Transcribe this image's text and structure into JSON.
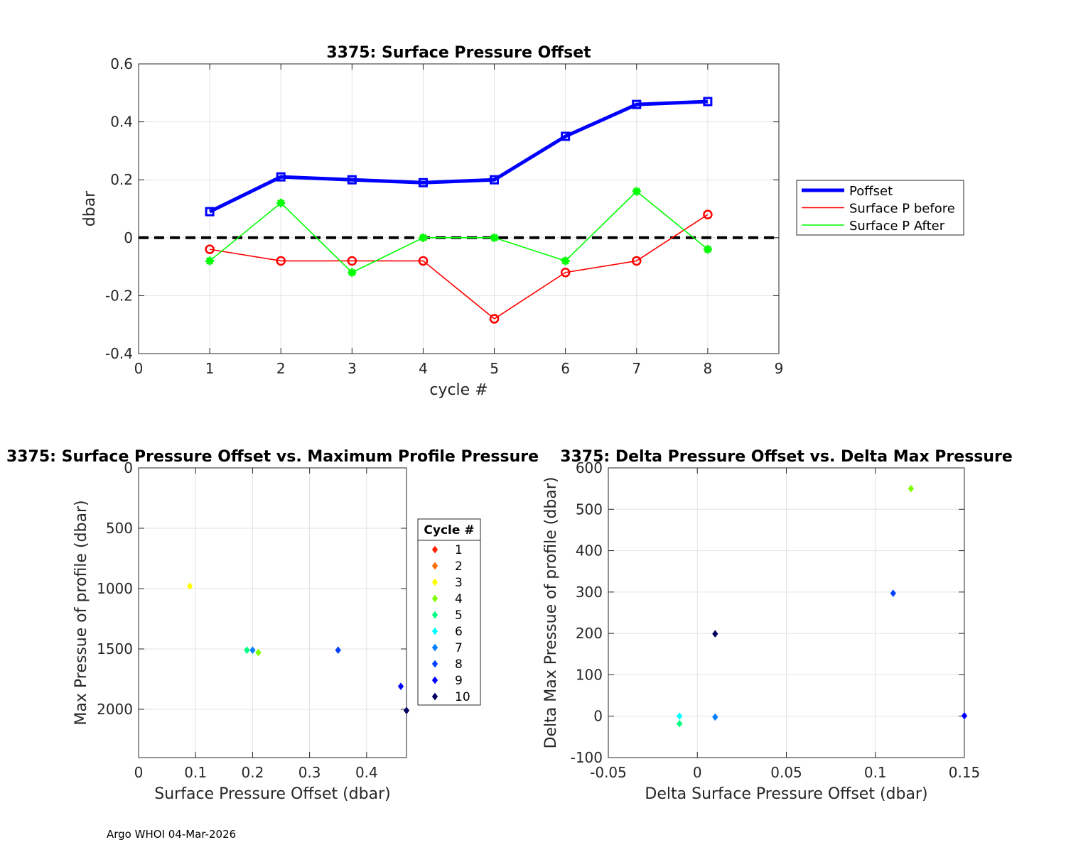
{
  "footer": "Argo WHOI 04-Mar-2026",
  "chart_data": [
    {
      "type": "line",
      "title": "3375: Surface Pressure Offset",
      "xlabel": "cycle #",
      "ylabel": "dbar",
      "xlim": [
        0,
        9
      ],
      "ylim": [
        -0.4,
        0.6
      ],
      "xticks": [
        0,
        1,
        2,
        3,
        4,
        5,
        6,
        7,
        8,
        9
      ],
      "yticks": [
        -0.4,
        -0.2,
        0,
        0.2,
        0.4,
        0.6
      ],
      "ytick_labels": [
        "-0.4",
        "-0.2",
        "0",
        "0.2",
        "0.4",
        "0.6"
      ],
      "grid": true,
      "zero_line": true,
      "legend_position": "outside-right",
      "x": [
        1,
        2,
        3,
        4,
        5,
        6,
        7,
        8
      ],
      "series": [
        {
          "name": "Poffset",
          "color": "#0000ff",
          "marker": "square",
          "values": [
            0.09,
            0.21,
            0.2,
            0.19,
            0.2,
            0.35,
            0.46,
            0.47
          ]
        },
        {
          "name": "Surface P before",
          "color": "#ff0000",
          "marker": "circle",
          "values": [
            -0.04,
            -0.08,
            -0.08,
            -0.08,
            -0.28,
            -0.12,
            -0.08,
            0.08
          ]
        },
        {
          "name": "Surface P After",
          "color": "#00ff00",
          "marker": "star",
          "values": [
            -0.08,
            0.12,
            -0.12,
            0.0,
            0.0,
            -0.08,
            0.16,
            -0.04
          ]
        }
      ]
    },
    {
      "type": "scatter",
      "title": "3375: Surface Pressure Offset vs. Maximum Profile Pressure",
      "xlabel": "Surface Pressure Offset (dbar)",
      "ylabel": "Max Pressue of profile (dbar)",
      "xlim": [
        0,
        0.47
      ],
      "ylim": [
        0,
        2400
      ],
      "y_reversed": true,
      "xticks": [
        0,
        0.1,
        0.2,
        0.3,
        0.4
      ],
      "xtick_labels": [
        "0",
        "0.1",
        "0.2",
        "0.3",
        "0.4"
      ],
      "yticks": [
        0,
        500,
        1000,
        1500,
        2000
      ],
      "grid": true,
      "legend_title": "Cycle #",
      "legend_position": "outside-right",
      "legend": [
        {
          "label": "1",
          "color": "#ff2000"
        },
        {
          "label": "2",
          "color": "#ff6a00"
        },
        {
          "label": "3",
          "color": "#ffff00"
        },
        {
          "label": "4",
          "color": "#7fff00"
        },
        {
          "label": "5",
          "color": "#00ff7f"
        },
        {
          "label": "6",
          "color": "#00ffff"
        },
        {
          "label": "7",
          "color": "#0080ff"
        },
        {
          "label": "8",
          "color": "#0040ff"
        },
        {
          "label": "9",
          "color": "#0000ff"
        },
        {
          "label": "10",
          "color": "#000060"
        }
      ],
      "points": [
        {
          "cycle": 3,
          "x": 0.09,
          "y": 980,
          "color": "#ffff00"
        },
        {
          "cycle": 6,
          "x": 0.19,
          "y": 1510,
          "color": "#00ffff"
        },
        {
          "cycle": 5,
          "x": 0.19,
          "y": 1510,
          "color": "#00ff7f"
        },
        {
          "cycle": 7,
          "x": 0.2,
          "y": 1510,
          "color": "#0080ff"
        },
        {
          "cycle": 4,
          "x": 0.21,
          "y": 1530,
          "color": "#7fff00"
        },
        {
          "cycle": 8,
          "x": 0.35,
          "y": 1510,
          "color": "#0040ff"
        },
        {
          "cycle": 9,
          "x": 0.46,
          "y": 1810,
          "color": "#0000ff"
        },
        {
          "cycle": 10,
          "x": 0.47,
          "y": 2010,
          "color": "#000060"
        }
      ]
    },
    {
      "type": "scatter",
      "title": "3375: Delta Pressure Offset vs. Delta Max Pressure",
      "xlabel": "Delta Surface Pressure Offset (dbar)",
      "ylabel": "Delta Max Pressue of profile (dbar)",
      "xlim": [
        -0.05,
        0.15
      ],
      "ylim": [
        -100,
        600
      ],
      "xticks": [
        -0.05,
        0,
        0.05,
        0.1,
        0.15
      ],
      "xtick_labels": [
        "-0.05",
        "0",
        "0.05",
        "0.1",
        "0.15"
      ],
      "yticks": [
        -100,
        0,
        100,
        200,
        300,
        400,
        500,
        600
      ],
      "grid": true,
      "points": [
        {
          "x": 0.12,
          "y": 550,
          "color": "#7fff00"
        },
        {
          "x": 0.11,
          "y": 297,
          "color": "#0040ff"
        },
        {
          "x": 0.01,
          "y": 199,
          "color": "#000060"
        },
        {
          "x": -0.01,
          "y": 0,
          "color": "#00ffff"
        },
        {
          "x": -0.01,
          "y": -18,
          "color": "#00ff7f"
        },
        {
          "x": 0.01,
          "y": -2,
          "color": "#0080ff"
        },
        {
          "x": 0.15,
          "y": 1,
          "color": "#0000ff"
        }
      ]
    }
  ]
}
